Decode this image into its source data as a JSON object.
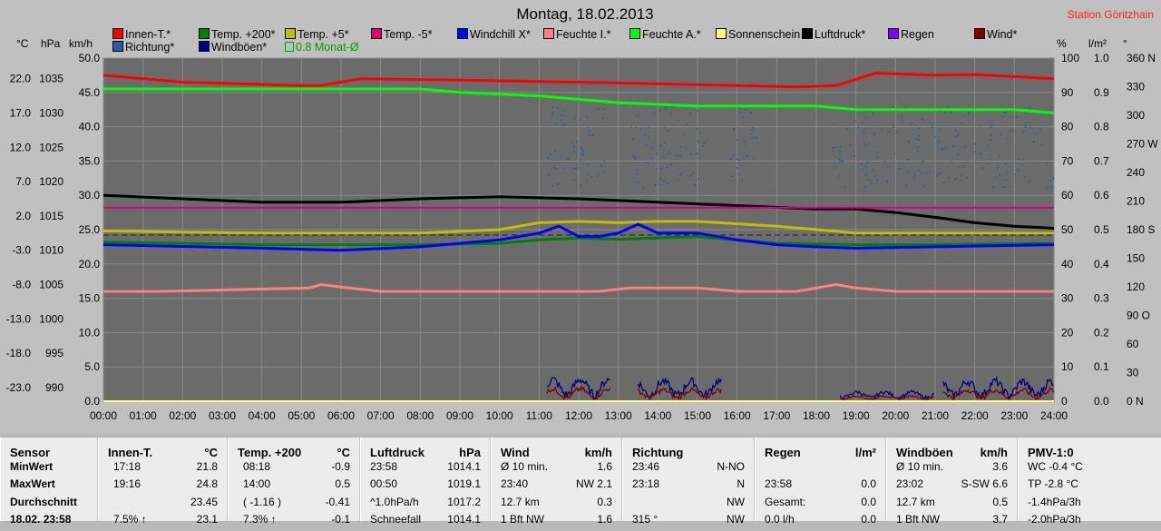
{
  "title": "Montag, 18.02.2013",
  "station": "Station Göritzhain",
  "legend": {
    "row1": [
      {
        "label": "Innen-T.*",
        "color": "#ff0000"
      },
      {
        "label": "Temp. +200*",
        "color": "#008000"
      },
      {
        "label": "Temp. +5*",
        "color": "#c0c000"
      },
      {
        "label": "Temp. -5*",
        "color": "#e0006a"
      },
      {
        "label": "Windchill X*",
        "color": "#0000ff"
      },
      {
        "label": "Feuchte I.*",
        "color": "#ff8080"
      },
      {
        "label": "Feuchte A.*",
        "color": "#00ff00"
      },
      {
        "label": "Sonnenschein",
        "color": "#ffff80"
      },
      {
        "label": "Luftdruck*",
        "color": "#000000"
      },
      {
        "label": "Regen",
        "color": "#8000ff"
      },
      {
        "label": "Wind*",
        "color": "#800000"
      }
    ],
    "row2": [
      {
        "label": "Richtung*",
        "color": "#2060a0"
      },
      {
        "label": "Windböen*",
        "color": "#000080"
      }
    ],
    "avg_label": "0.8 Monat-Ø"
  },
  "units": {
    "celsius": "°C",
    "hpa": "hPa",
    "kmh": "km/h",
    "percent": "%",
    "lm2": "l/m²",
    "deg": "°"
  },
  "chart_data": {
    "type": "line",
    "x_ticks": [
      "00:00",
      "01:00",
      "02:00",
      "03:00",
      "04:00",
      "05:00",
      "06:00",
      "07:00",
      "08:00",
      "09:00",
      "10:00",
      "11:00",
      "12:00",
      "13:00",
      "14:00",
      "15:00",
      "16:00",
      "17:00",
      "18:00",
      "19:00",
      "20:00",
      "21:00",
      "22:00",
      "23:00",
      "24:00"
    ],
    "axes": {
      "celsius": [
        "22.0",
        "17.0",
        "12.0",
        "7.0",
        "2.0",
        "-3.0",
        "-8.0",
        "-13.0",
        "-18.0",
        "-23.0"
      ],
      "hpa": [
        "1035",
        "1030",
        "1025",
        "1020",
        "1015",
        "1010",
        "1005",
        "1000",
        "995",
        "990"
      ],
      "kmh": [
        "50.0",
        "45.0",
        "40.0",
        "35.0",
        "30.0",
        "25.0",
        "20.0",
        "15.0",
        "10.0",
        "5.0",
        "0.0"
      ],
      "percent": [
        "100",
        "90",
        "80",
        "70",
        "60",
        "50",
        "40",
        "30",
        "20",
        "10",
        "0"
      ],
      "lm2": [
        "1.0",
        "0.9",
        "0.8",
        "0.7",
        "0.6",
        "0.5",
        "0.4",
        "0.3",
        "0.2",
        "0.1",
        "0.0"
      ],
      "deg": [
        "360 N",
        "330",
        "300",
        "270 W",
        "240",
        "210",
        "180 S",
        "150",
        "120",
        "90 O",
        "60",
        "30",
        "0 N"
      ]
    },
    "y_range_kmh": [
      0,
      50
    ],
    "series": [
      {
        "name": "Innen-T.*",
        "color": "#ff0000",
        "x": [
          0,
          2,
          5,
          5.5,
          6.5,
          9,
          12,
          16,
          17.5,
          18.5,
          19.5,
          21,
          22,
          24
        ],
        "y": [
          47.5,
          46.5,
          46,
          46,
          47,
          46.8,
          46.5,
          46,
          45.8,
          46,
          47.8,
          47.5,
          47.6,
          47
        ]
      },
      {
        "name": "Feuchte A.*",
        "color": "#00ff00",
        "x": [
          0,
          3,
          6,
          8,
          9,
          11,
          12,
          13,
          15,
          18,
          19,
          21,
          23,
          24
        ],
        "y": [
          45.5,
          45.5,
          45.5,
          45.5,
          45,
          44.5,
          44,
          43.5,
          43,
          43,
          42.5,
          42.5,
          42.5,
          42
        ]
      },
      {
        "name": "Luftdruck*",
        "color": "#000000",
        "x": [
          0,
          2,
          4,
          6,
          8,
          10,
          12,
          14,
          16,
          18,
          19,
          20,
          21,
          22,
          23,
          24
        ],
        "y": [
          30,
          29.5,
          29,
          29,
          29.5,
          29.8,
          29.5,
          29,
          28.5,
          28,
          28,
          27.5,
          26.8,
          26,
          25.5,
          25.2
        ]
      },
      {
        "name": "Temp. -5*",
        "color": "#e0006a",
        "x": [
          0,
          24
        ],
        "y": [
          28.2,
          28.2
        ]
      },
      {
        "name": "Temp. +5*",
        "color": "#c0c000",
        "x": [
          0,
          4,
          8,
          10,
          11,
          12,
          13,
          14,
          15,
          17,
          19,
          21,
          24
        ],
        "y": [
          24.8,
          24.5,
          24.5,
          25,
          26,
          26.2,
          26,
          26.2,
          26.2,
          25.5,
          24.5,
          24.5,
          24.5
        ]
      },
      {
        "name": "Temp. +200*",
        "color": "#008000",
        "x": [
          0,
          4,
          8,
          10,
          11,
          12,
          13,
          14,
          15,
          17,
          19,
          21,
          24
        ],
        "y": [
          23.2,
          22.8,
          22.8,
          23,
          23.5,
          23.8,
          23.6,
          23.8,
          24,
          23,
          22.8,
          22.8,
          23
        ]
      },
      {
        "name": "Windchill X*",
        "color": "#0000ff",
        "x": [
          0,
          4,
          6,
          8,
          9,
          10,
          11,
          11.5,
          12,
          12.5,
          13,
          13.5,
          14,
          15,
          16,
          17,
          18,
          19,
          21,
          24
        ],
        "y": [
          22.8,
          22.3,
          22,
          22.5,
          23,
          23.5,
          24.5,
          25.5,
          24,
          24,
          24.5,
          25.8,
          24.5,
          24.5,
          23.5,
          22.8,
          22.5,
          22.3,
          22.5,
          22.8
        ]
      },
      {
        "name": "Feuchte I.*",
        "color": "#ff8080",
        "x": [
          0,
          1.3,
          1.5,
          5.2,
          5.5,
          6.2,
          7,
          9,
          10,
          11,
          12.5,
          13.3,
          15,
          16,
          17.5,
          18,
          18.5,
          19,
          20,
          21,
          24
        ],
        "y": [
          16,
          16,
          16,
          16.5,
          17,
          16.5,
          16,
          16,
          16,
          16,
          16,
          16.5,
          16.5,
          16,
          16,
          16.5,
          17,
          16.5,
          16,
          16,
          16
        ]
      },
      {
        "name": "Sonnenschein",
        "color": "#ffff80",
        "x": [
          0,
          24
        ],
        "y": [
          0,
          0
        ]
      }
    ],
    "wind": {
      "name": "Wind*",
      "color": "#800000",
      "segments": [
        [
          11.2,
          11.8,
          12.5
        ],
        [
          13.5,
          14.5,
          15.5
        ],
        [
          18.5,
          20,
          21
        ],
        [
          21.5,
          22.5,
          23,
          24
        ]
      ]
    },
    "gusts": {
      "name": "Windböen*",
      "color": "#000080"
    },
    "direction": {
      "name": "Richtung*",
      "color": "#2060a0",
      "range_deg": [
        225,
        310
      ]
    }
  },
  "table": {
    "columns": [
      {
        "header": "Sensor",
        "rows": [
          "MinWert",
          "MaxWert",
          "Durchschnitt",
          "18.02. 23:58"
        ]
      },
      {
        "header": "Innen-T.",
        "unit": "°C",
        "rows": [
          [
            "17:18",
            "21.8"
          ],
          [
            "19:16",
            "24.8"
          ],
          [
            "",
            "23.45"
          ],
          [
            "7.5% ↑",
            "23.1"
          ]
        ]
      },
      {
        "header": "Temp. +200",
        "unit": "°C",
        "rows": [
          [
            "08:18",
            "-0.9"
          ],
          [
            "14:00",
            "0.5"
          ],
          [
            "( -1.16 )",
            "-0.41"
          ],
          [
            "7.3% ↑",
            "-0.1"
          ]
        ]
      },
      {
        "header": "Luftdruck",
        "unit": "hPa",
        "rows": [
          [
            "23:58",
            "1014.1"
          ],
          [
            "00:50",
            "1019.1"
          ],
          [
            "^1.0hPa/h",
            "1017.2"
          ],
          [
            "Schneefall",
            "1014.1"
          ]
        ]
      },
      {
        "header": "Wind",
        "unit": "km/h",
        "rows": [
          [
            "Ø 10 min.",
            "1.6"
          ],
          [
            "23:40",
            "NW 2.1"
          ],
          [
            "12.7 km",
            "0.3"
          ],
          [
            "1 Bft NW",
            "1.6"
          ]
        ]
      },
      {
        "header": "Richtung",
        "unit": "",
        "rows": [
          [
            "23:46",
            "N-NO"
          ],
          [
            "23:18",
            "N"
          ],
          [
            "",
            "NW"
          ],
          [
            "315 °",
            "NW"
          ]
        ]
      },
      {
        "header": "Regen",
        "unit": "l/m²",
        "rows": [
          [
            "",
            ""
          ],
          [
            "23:58",
            "0.0"
          ],
          [
            "Gesamt:",
            "0.0"
          ],
          [
            "0.0 l/h",
            "0.0"
          ]
        ]
      },
      {
        "header": "Windböen",
        "unit": "km/h",
        "rows": [
          [
            "Ø 10 min.",
            "3.6"
          ],
          [
            "23:02",
            "S-SW 6.6"
          ],
          [
            "12.7 km",
            "0.5"
          ],
          [
            "1 Bft NW",
            "3.7"
          ]
        ]
      },
      {
        "header": "PMV-1:0",
        "unit": "",
        "rows": [
          [
            "WC -0.4 °C",
            ""
          ],
          [
            "TP -2.8 °C",
            ""
          ],
          [
            "-1.4hPa/3h",
            ""
          ],
          [
            "-2.0hPa/3h",
            ""
          ]
        ]
      }
    ]
  }
}
